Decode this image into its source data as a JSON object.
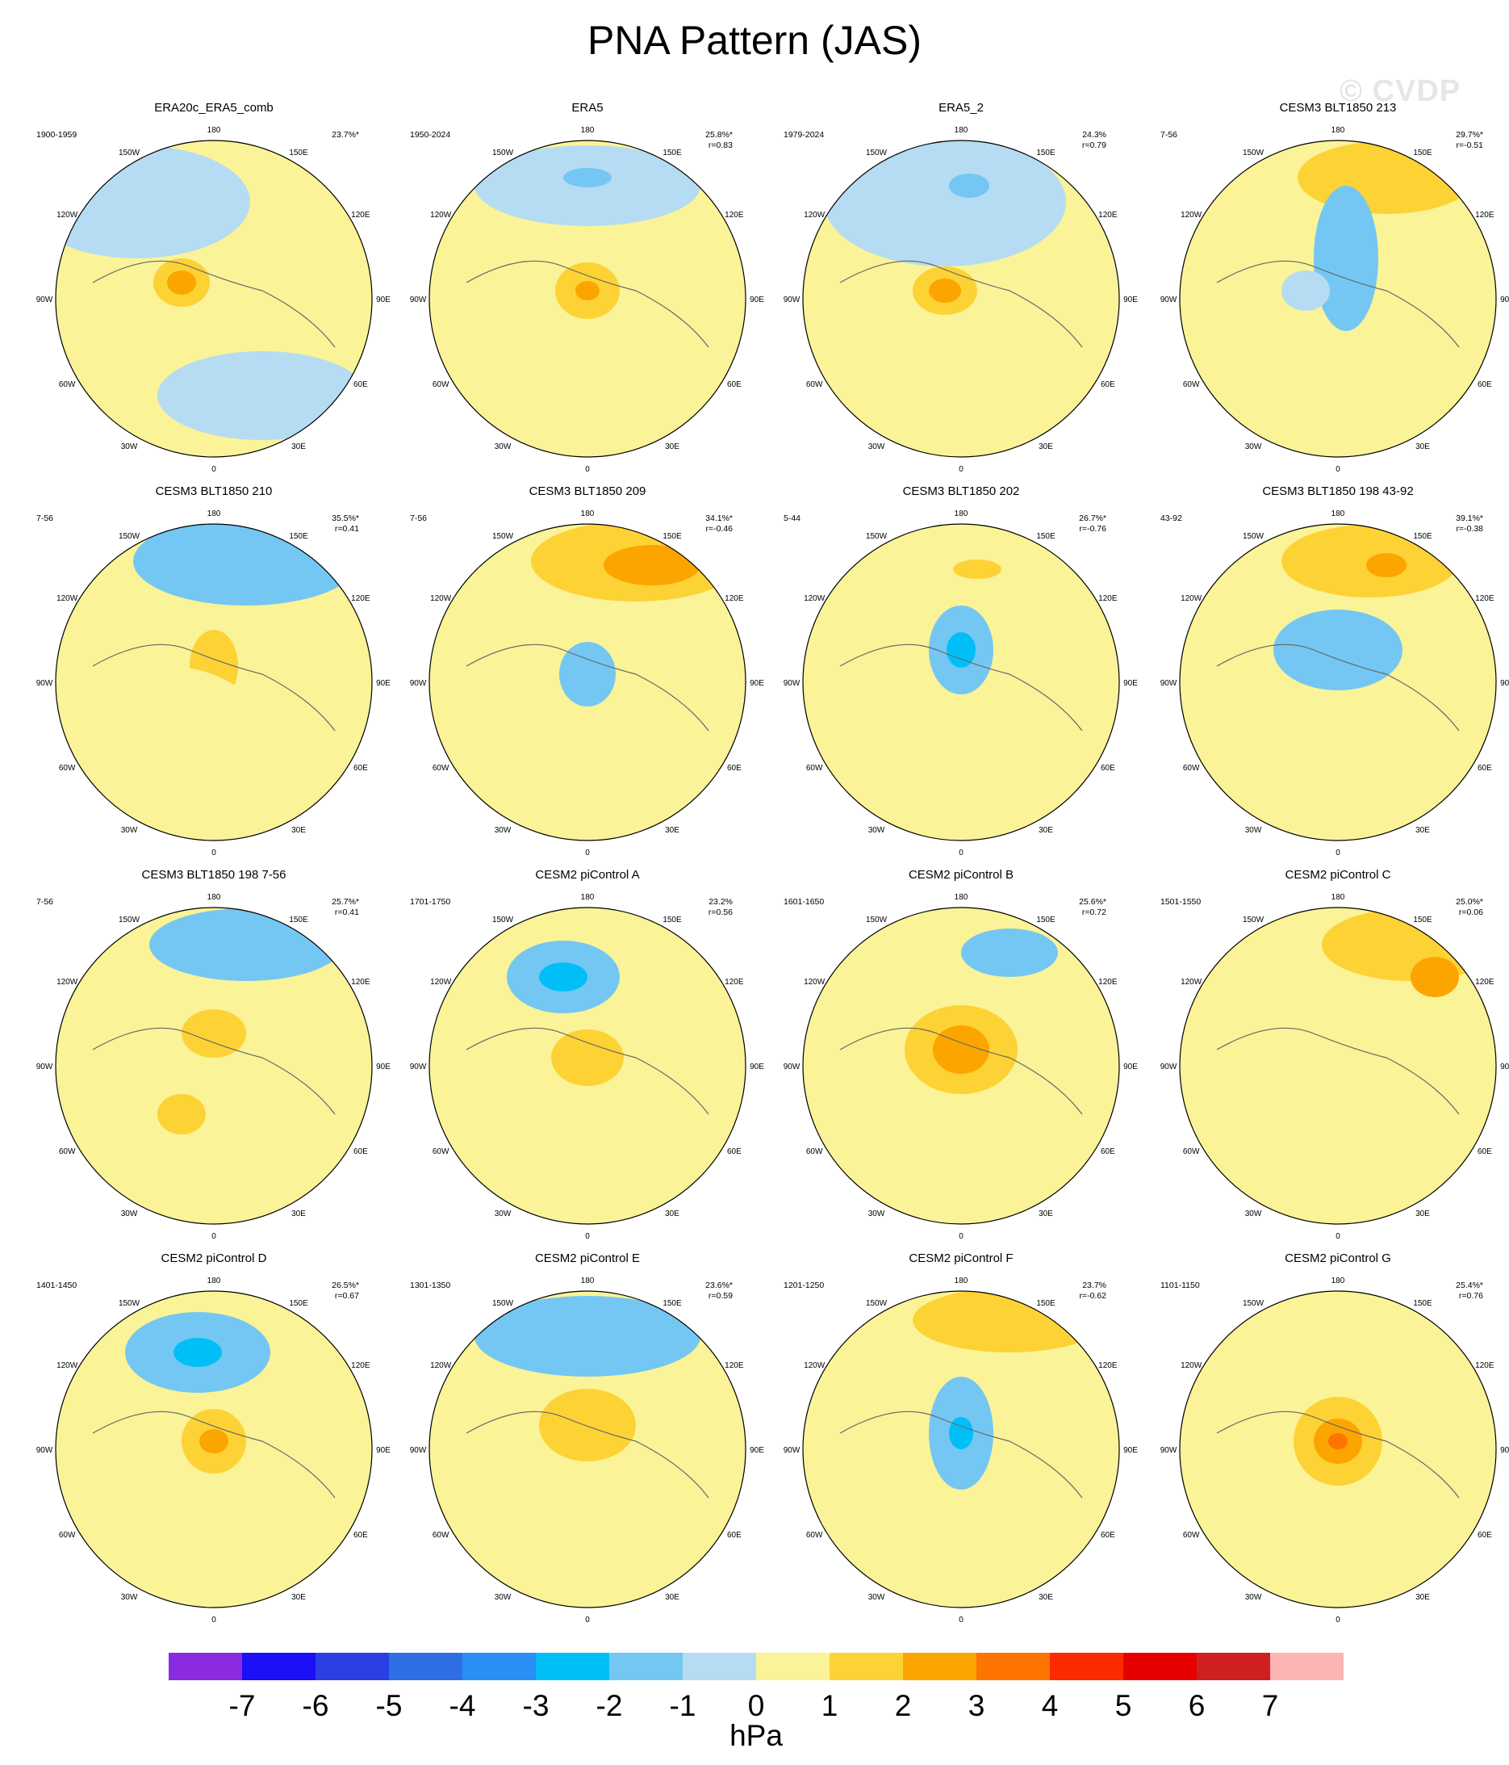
{
  "title": "PNA Pattern (JAS)",
  "watermark": "© CVDP",
  "colorbar": {
    "colors": [
      "#8a2be2",
      "#1b10f6",
      "#2b3fe2",
      "#2f6fe6",
      "#2a8ff5",
      "#00bff7",
      "#74c7f2",
      "#b5dcf2",
      "#faf398",
      "#fdd235",
      "#fca500",
      "#fd7400",
      "#fe2a00",
      "#e60000",
      "#cf1f1f",
      "#fdb4b4"
    ],
    "ticks": [
      "-7",
      "-6",
      "-5",
      "-4",
      "-3",
      "-2",
      "-1",
      "0",
      "1",
      "2",
      "3",
      "4",
      "5",
      "6",
      "7"
    ],
    "unit": "hPa"
  },
  "lon_labels": [
    "180",
    "150E",
    "120E",
    "90E",
    "60E",
    "30E",
    "0",
    "30W",
    "60W",
    "90W",
    "120W",
    "150W"
  ],
  "palette": {
    "yellow": "#faf398",
    "lightblue": "#b5dcf2",
    "gold": "#fdd235",
    "orange": "#fca500",
    "midblue": "#74c7f2",
    "cyan": "#00bff7",
    "red": "#fd7400"
  },
  "chart_data": [
    {
      "type": "heatmap",
      "title": "ERA20c_ERA5_comb",
      "period": "1900-1959",
      "pct": "23.7%*",
      "r": ""
    },
    {
      "type": "heatmap",
      "title": "ERA5",
      "period": "1950-2024",
      "pct": "25.8%*",
      "r": "r=0.83"
    },
    {
      "type": "heatmap",
      "title": "ERA5_2",
      "period": "1979-2024",
      "pct": "24.3%",
      "r": "r=0.79"
    },
    {
      "type": "heatmap",
      "title": "CESM3 BLT1850 213",
      "period": "7-56",
      "pct": "29.7%*",
      "r": "r=-0.51"
    },
    {
      "type": "heatmap",
      "title": "CESM3 BLT1850 210",
      "period": "7-56",
      "pct": "35.5%*",
      "r": "r=0.41"
    },
    {
      "type": "heatmap",
      "title": "CESM3 BLT1850 209",
      "period": "7-56",
      "pct": "34.1%*",
      "r": "r=-0.46"
    },
    {
      "type": "heatmap",
      "title": "CESM3 BLT1850 202",
      "period": "5-44",
      "pct": "26.7%*",
      "r": "r=-0.76"
    },
    {
      "type": "heatmap",
      "title": "CESM3 BLT1850 198 43-92",
      "period": "43-92",
      "pct": "39.1%*",
      "r": "r=-0.38"
    },
    {
      "type": "heatmap",
      "title": "CESM3 BLT1850 198 7-56",
      "period": "7-56",
      "pct": "25.7%*",
      "r": "r=0.41"
    },
    {
      "type": "heatmap",
      "title": "CESM2 piControl A",
      "period": "1701-1750",
      "pct": "23.2%",
      "r": "r=0.56"
    },
    {
      "type": "heatmap",
      "title": "CESM2 piControl B",
      "period": "1601-1650",
      "pct": "25.6%*",
      "r": "r=0.72"
    },
    {
      "type": "heatmap",
      "title": "CESM2 piControl C",
      "period": "1501-1550",
      "pct": "25.0%*",
      "r": "r=0.06"
    },
    {
      "type": "heatmap",
      "title": "CESM2 piControl D",
      "period": "1401-1450",
      "pct": "26.5%*",
      "r": "r=0.67"
    },
    {
      "type": "heatmap",
      "title": "CESM2 piControl E",
      "period": "1301-1350",
      "pct": "23.6%*",
      "r": "r=0.59"
    },
    {
      "type": "heatmap",
      "title": "CESM2 piControl F",
      "period": "1201-1250",
      "pct": "23.7%",
      "r": "r=-0.62"
    },
    {
      "type": "heatmap",
      "title": "CESM2 piControl G",
      "period": "1101-1150",
      "pct": "25.4%*",
      "r": "r=0.76"
    }
  ]
}
